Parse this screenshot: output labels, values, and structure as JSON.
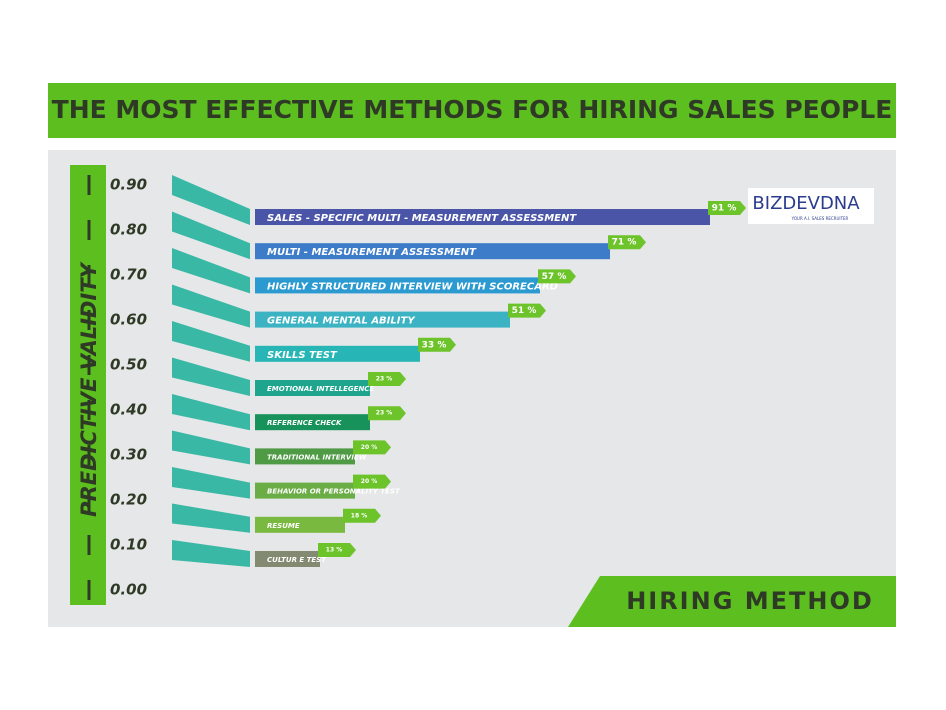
{
  "chart_data": {
    "type": "bar",
    "title": "THE MOST EFFECTIVE METHODS FOR HIRING SALES PEOPLE",
    "y_label": "PREDICTIVE VALIDITY",
    "x_label": "HIRING METHOD",
    "categories": [
      "SALES - SPECIFIC MULTI - MEASUREMENT ASSESSMENT",
      "MULTI - MEASUREMENT ASSESSMENT",
      "HIGHLY STRUCTURED INTERVIEW WITH SCORECARD",
      "GENERAL MENTAL ABILITY",
      "SKILLS TEST",
      "EMOTIONAL INTELLEGENCE",
      "REFERENCE CHECK",
      "TRADITIONAL INTERVIEW",
      "BEHAVIOR OR PERSONALITY TEST",
      "RESUME",
      "CULTUR E TEST"
    ],
    "values": [
      91,
      71,
      57,
      51,
      33,
      23,
      23,
      20,
      20,
      18,
      13
    ],
    "value_labels": [
      "91 %",
      "71 %",
      "57 %",
      "51 %",
      "33 %",
      "23 %",
      "23 %",
      "20 %",
      "20 %",
      "18 %",
      "13 %"
    ],
    "colors": [
      "#4a55a8",
      "#3d7cc9",
      "#2a9ad0",
      "#3bb3c3",
      "#27b6b5",
      "#1fa58e",
      "#17925a",
      "#4f9a45",
      "#6aac45",
      "#7ab940",
      "#828a72"
    ],
    "ylim": [
      0,
      0.9
    ],
    "yticks": [
      {
        "value": 0.9,
        "label": "0.90"
      },
      {
        "value": 0.8,
        "label": "0.80"
      },
      {
        "value": 0.7,
        "label": "0.70"
      },
      {
        "value": 0.6,
        "label": "0.60"
      },
      {
        "value": 0.5,
        "label": "0.50"
      },
      {
        "value": 0.4,
        "label": "0.40"
      },
      {
        "value": 0.3,
        "label": "0.30"
      },
      {
        "value": 0.2,
        "label": "0.20"
      },
      {
        "value": 0.1,
        "label": "0.10"
      },
      {
        "value": 0,
        "label": "0.00"
      }
    ]
  },
  "logo": {
    "text": "BIZDEVDNA",
    "tagline": "YOUR A.I. SALES RECRUITER"
  }
}
